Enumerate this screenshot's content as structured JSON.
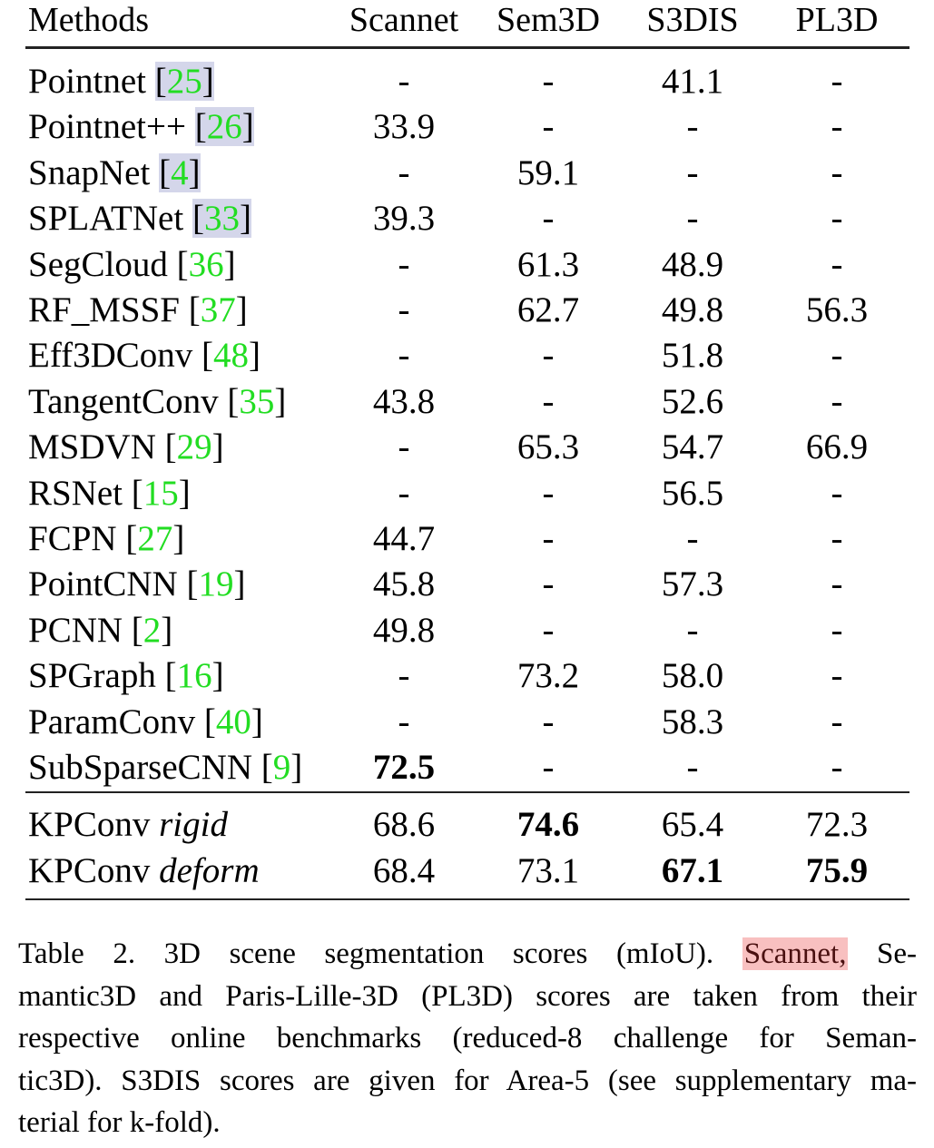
{
  "table": {
    "columns": [
      "Methods",
      "Scannet",
      "Sem3D",
      "S3DIS",
      "PL3D"
    ],
    "rows": [
      {
        "method": "Pointnet",
        "ref": "25",
        "ref_highlight": true,
        "values": [
          "-",
          "-",
          "41.1",
          "-"
        ],
        "bold": []
      },
      {
        "method": "Pointnet++",
        "ref": "26",
        "ref_highlight": true,
        "values": [
          "33.9",
          "-",
          "-",
          "-"
        ],
        "bold": []
      },
      {
        "method": "SnapNet",
        "ref": "4",
        "ref_highlight": true,
        "values": [
          "-",
          "59.1",
          "-",
          "-"
        ],
        "bold": []
      },
      {
        "method": "SPLATNet",
        "ref": "33",
        "ref_highlight": true,
        "values": [
          "39.3",
          "-",
          "-",
          "-"
        ],
        "bold": []
      },
      {
        "method": "SegCloud",
        "ref": "36",
        "ref_highlight": false,
        "values": [
          "-",
          "61.3",
          "48.9",
          "-"
        ],
        "bold": []
      },
      {
        "method": "RF_MSSF",
        "ref": "37",
        "ref_highlight": false,
        "values": [
          "-",
          "62.7",
          "49.8",
          "56.3"
        ],
        "bold": []
      },
      {
        "method": "Eff3DConv",
        "ref": "48",
        "ref_highlight": false,
        "values": [
          "-",
          "-",
          "51.8",
          "-"
        ],
        "bold": []
      },
      {
        "method": "TangentConv",
        "ref": "35",
        "ref_highlight": false,
        "values": [
          "43.8",
          "-",
          "52.6",
          "-"
        ],
        "bold": []
      },
      {
        "method": "MSDVN",
        "ref": "29",
        "ref_highlight": false,
        "values": [
          "-",
          "65.3",
          "54.7",
          "66.9"
        ],
        "bold": []
      },
      {
        "method": "RSNet",
        "ref": "15",
        "ref_highlight": false,
        "values": [
          "-",
          "-",
          "56.5",
          "-"
        ],
        "bold": []
      },
      {
        "method": "FCPN",
        "ref": "27",
        "ref_highlight": false,
        "values": [
          "44.7",
          "-",
          "-",
          "-"
        ],
        "bold": []
      },
      {
        "method": "PointCNN",
        "ref": "19",
        "ref_highlight": false,
        "values": [
          "45.8",
          "-",
          "57.3",
          "-"
        ],
        "bold": []
      },
      {
        "method": "PCNN",
        "ref": "2",
        "ref_highlight": false,
        "values": [
          "49.8",
          "-",
          "-",
          "-"
        ],
        "bold": []
      },
      {
        "method": "SPGraph",
        "ref": "16",
        "ref_highlight": false,
        "values": [
          "-",
          "73.2",
          "58.0",
          "-"
        ],
        "bold": []
      },
      {
        "method": "ParamConv",
        "ref": "40",
        "ref_highlight": false,
        "values": [
          "-",
          "-",
          "58.3",
          "-"
        ],
        "bold": []
      },
      {
        "method": "SubSparseCNN",
        "ref": "9",
        "ref_highlight": false,
        "values": [
          "72.5",
          "-",
          "-",
          "-"
        ],
        "bold": [
          0
        ]
      }
    ],
    "ours": [
      {
        "method": "KPConv",
        "variant": "rigid",
        "values": [
          "68.6",
          "74.6",
          "65.4",
          "72.3"
        ],
        "bold": [
          1
        ]
      },
      {
        "method": "KPConv",
        "variant": "deform",
        "values": [
          "68.4",
          "73.1",
          "67.1",
          "75.9"
        ],
        "bold": [
          2,
          3
        ]
      }
    ]
  },
  "caption": {
    "line1_pre": "Table 2. 3D scene segmentation scores (mIoU).",
    "line1_hl": "Scannet,",
    "line1_post": "Se-",
    "line2": "mantic3D and Paris-Lille-3D (PL3D) scores are taken from their",
    "line3": "respective online benchmarks (reduced-8 challenge for Seman-",
    "line4": "tic3D). S3DIS scores are given for Area-5 (see supplementary ma-",
    "line5": "terial for k-fold)."
  },
  "colors": {
    "ref_number": "#22dd22",
    "ref_highlight": "#d4d6ea",
    "caption_highlight": "#f8c0c0"
  }
}
